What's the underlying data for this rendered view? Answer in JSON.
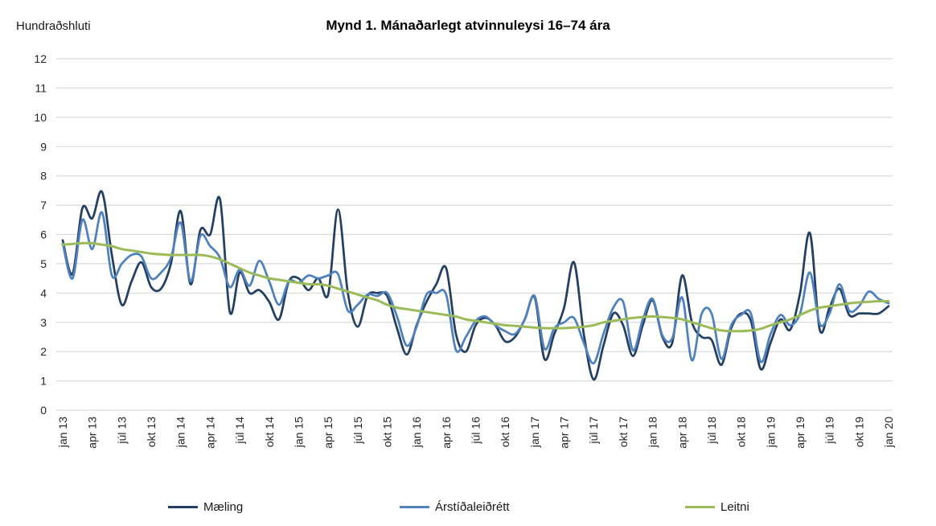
{
  "chart_data": {
    "type": "line",
    "title": "Mynd 1. Mánaðarlegt atvinnuleysi 16–74 ára",
    "ylabel": "Hundraðshluti",
    "ylim": [
      0,
      12
    ],
    "y_tick_step": 1,
    "y_tick_labels": [
      "0",
      "1",
      "2",
      "3",
      "4",
      "5",
      "6",
      "7",
      "8",
      "9",
      "10",
      "11",
      "12"
    ],
    "grid": true,
    "line_style": "smooth",
    "legend_position": "bottom",
    "x_tick_every": 3,
    "x_tick_labels": [
      "jan 13",
      "apr 13",
      "júl 13",
      "okt 13",
      "jan 14",
      "apr 14",
      "júl 14",
      "okt 14",
      "jan 15",
      "apr 15",
      "júl 15",
      "okt 15",
      "jan 16",
      "apr 16",
      "júl 16",
      "okt 16",
      "jan 17",
      "apr 17",
      "júl 17",
      "okt 17",
      "jan 18",
      "apr 18",
      "júl 18",
      "okt 18",
      "jan 19",
      "apr 19",
      "júl 19",
      "okt 19",
      "jan 20"
    ],
    "x_months": [
      "jan 13",
      "feb 13",
      "mar 13",
      "apr 13",
      "maí 13",
      "jún 13",
      "júl 13",
      "ágú 13",
      "sep 13",
      "okt 13",
      "nóv 13",
      "des 13",
      "jan 14",
      "feb 14",
      "mar 14",
      "apr 14",
      "maí 14",
      "jún 14",
      "júl 14",
      "ágú 14",
      "sep 14",
      "okt 14",
      "nóv 14",
      "des 14",
      "jan 15",
      "feb 15",
      "mar 15",
      "apr 15",
      "maí 15",
      "jún 15",
      "júl 15",
      "ágú 15",
      "sep 15",
      "okt 15",
      "nóv 15",
      "des 15",
      "jan 16",
      "feb 16",
      "mar 16",
      "apr 16",
      "maí 16",
      "jún 16",
      "júl 16",
      "ágú 16",
      "sep 16",
      "okt 16",
      "nóv 16",
      "des 16",
      "jan 17",
      "feb 17",
      "mar 17",
      "apr 17",
      "maí 17",
      "jún 17",
      "júl 17",
      "ágú 17",
      "sep 17",
      "okt 17",
      "nóv 17",
      "des 17",
      "jan 18",
      "feb 18",
      "mar 18",
      "apr 18",
      "maí 18",
      "jún 18",
      "júl 18",
      "ágú 18",
      "sep 18",
      "okt 18",
      "nóv 18",
      "des 18",
      "jan 19",
      "feb 19",
      "mar 19",
      "apr 19",
      "maí 19",
      "jún 19",
      "júl 19",
      "ágú 19",
      "sep 19",
      "okt 19",
      "nóv 19",
      "des 19",
      "jan 20"
    ],
    "series": [
      {
        "id": "maeling",
        "name": "Mæling",
        "color": "#243F60",
        "values": [
          5.8,
          4.65,
          6.9,
          6.55,
          7.45,
          5.3,
          3.6,
          4.4,
          5.05,
          4.2,
          4.15,
          5.0,
          6.8,
          4.3,
          6.15,
          6.0,
          7.2,
          3.35,
          4.7,
          4.0,
          4.1,
          3.7,
          3.1,
          4.4,
          4.5,
          4.1,
          4.5,
          3.95,
          6.85,
          4.0,
          2.85,
          3.9,
          4.0,
          3.9,
          2.8,
          1.9,
          2.9,
          3.7,
          4.3,
          4.85,
          2.6,
          2.0,
          2.9,
          3.15,
          2.9,
          2.35,
          2.5,
          3.1,
          3.85,
          1.75,
          2.6,
          3.5,
          5.05,
          2.6,
          1.05,
          2.2,
          3.3,
          2.9,
          1.85,
          2.9,
          3.75,
          2.5,
          2.3,
          4.6,
          3.0,
          2.5,
          2.4,
          1.55,
          2.8,
          3.3,
          3.05,
          1.4,
          2.3,
          3.1,
          2.75,
          4.0,
          6.05,
          2.75,
          3.5,
          4.15,
          3.25,
          3.3,
          3.3,
          3.3,
          3.55
        ]
      },
      {
        "id": "arstidaleidrett",
        "name": "Árstíðaleiðrétt",
        "color": "#4F81BD",
        "values": [
          5.7,
          4.5,
          6.5,
          5.5,
          6.75,
          4.6,
          5.0,
          5.3,
          5.25,
          4.5,
          4.7,
          5.2,
          6.4,
          4.4,
          5.95,
          5.6,
          5.2,
          4.2,
          4.8,
          4.25,
          5.1,
          4.4,
          3.6,
          4.4,
          4.35,
          4.6,
          4.5,
          4.6,
          4.65,
          3.4,
          3.6,
          3.95,
          3.9,
          4.0,
          3.2,
          2.2,
          2.85,
          3.95,
          4.0,
          3.95,
          2.05,
          2.5,
          3.05,
          3.2,
          2.9,
          2.7,
          2.6,
          3.1,
          3.9,
          2.1,
          2.8,
          3.0,
          3.15,
          2.3,
          1.6,
          2.6,
          3.5,
          3.7,
          2.05,
          3.1,
          3.8,
          2.55,
          2.45,
          3.85,
          1.7,
          3.3,
          3.3,
          1.75,
          2.9,
          3.25,
          3.3,
          1.65,
          2.6,
          3.25,
          2.9,
          3.3,
          4.7,
          2.95,
          3.3,
          4.3,
          3.4,
          3.55,
          4.05,
          3.8,
          3.65
        ]
      },
      {
        "id": "leitni",
        "name": "Leitni",
        "color": "#9BBB59",
        "values": [
          5.65,
          5.68,
          5.7,
          5.7,
          5.65,
          5.6,
          5.5,
          5.45,
          5.4,
          5.35,
          5.32,
          5.3,
          5.3,
          5.3,
          5.3,
          5.25,
          5.15,
          5.0,
          4.85,
          4.7,
          4.6,
          4.5,
          4.45,
          4.4,
          4.35,
          4.3,
          4.3,
          4.25,
          4.15,
          4.05,
          3.95,
          3.85,
          3.75,
          3.6,
          3.5,
          3.45,
          3.4,
          3.35,
          3.3,
          3.25,
          3.2,
          3.1,
          3.05,
          3.0,
          2.95,
          2.9,
          2.88,
          2.85,
          2.82,
          2.8,
          2.8,
          2.8,
          2.82,
          2.85,
          2.9,
          3.0,
          3.05,
          3.1,
          3.15,
          3.18,
          3.2,
          3.18,
          3.15,
          3.1,
          3.0,
          2.9,
          2.8,
          2.72,
          2.7,
          2.7,
          2.72,
          2.78,
          2.9,
          3.0,
          3.1,
          3.25,
          3.4,
          3.5,
          3.55,
          3.6,
          3.65,
          3.68,
          3.7,
          3.72,
          3.72
        ]
      }
    ],
    "style": {
      "grid_color": "#D9D9D9",
      "axis_text_color": "#262626",
      "background": "#FFFFFF"
    }
  }
}
